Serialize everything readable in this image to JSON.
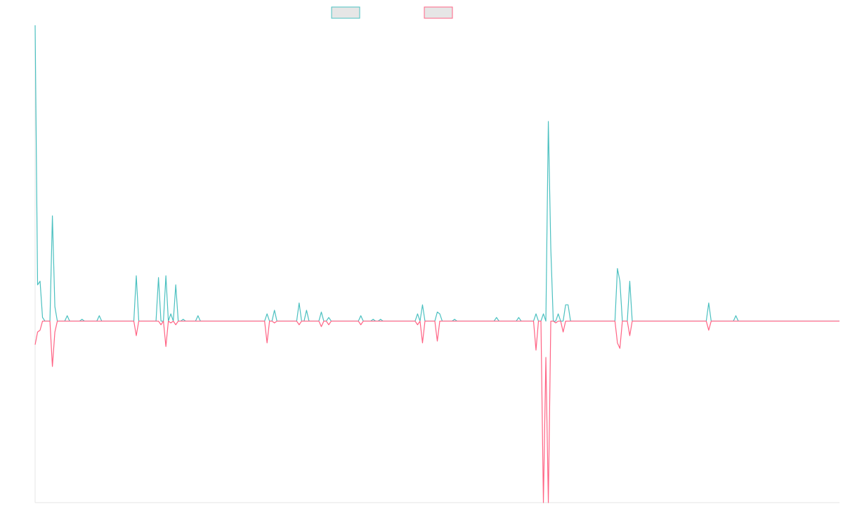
{
  "chart_data": {
    "type": "line",
    "title": "",
    "xlabel": "",
    "ylabel": "",
    "grid": false,
    "legend_position": "top-center",
    "ylim": [
      -100,
      163
    ],
    "series": [
      {
        "name": "",
        "color": "#4bc0c0",
        "fill": "#e6e6e6",
        "values": [
          163,
          20,
          22,
          2,
          0,
          0,
          0,
          58,
          8,
          0,
          0,
          0,
          0,
          3,
          0,
          0,
          0,
          0,
          0,
          1,
          0,
          0,
          0,
          0,
          0,
          0,
          3,
          0,
          0,
          0,
          0,
          0,
          0,
          0,
          0,
          0,
          0,
          0,
          0,
          0,
          0,
          25,
          0,
          0,
          0,
          0,
          0,
          0,
          0,
          0,
          24,
          0,
          0,
          25,
          0,
          4,
          0,
          20,
          0,
          0,
          1,
          0,
          0,
          0,
          0,
          0,
          3,
          0,
          0,
          0,
          0,
          0,
          0,
          0,
          0,
          0,
          0,
          0,
          0,
          0,
          0,
          0,
          0,
          0,
          0,
          0,
          0,
          0,
          0,
          0,
          0,
          0,
          0,
          0,
          4,
          0,
          0,
          6,
          0,
          0,
          0,
          0,
          0,
          0,
          0,
          0,
          0,
          10,
          0,
          0,
          6,
          0,
          0,
          0,
          0,
          0,
          5,
          0,
          0,
          2,
          0,
          0,
          0,
          0,
          0,
          0,
          0,
          0,
          0,
          0,
          0,
          0,
          3,
          0,
          0,
          0,
          0,
          1,
          0,
          0,
          1,
          0,
          0,
          0,
          0,
          0,
          0,
          0,
          0,
          0,
          0,
          0,
          0,
          0,
          0,
          4,
          0,
          9,
          0,
          0,
          0,
          0,
          0,
          5,
          4,
          0,
          0,
          0,
          0,
          0,
          1,
          0,
          0,
          0,
          0,
          0,
          0,
          0,
          0,
          0,
          0,
          0,
          0,
          0,
          0,
          0,
          0,
          2,
          0,
          0,
          0,
          0,
          0,
          0,
          0,
          0,
          2,
          0,
          0,
          0,
          0,
          0,
          0,
          4,
          0,
          0,
          4,
          0,
          110,
          40,
          0,
          0,
          4,
          0,
          0,
          9,
          9,
          0,
          0,
          0,
          0,
          0,
          0,
          0,
          0,
          0,
          0,
          0,
          0,
          0,
          0,
          0,
          0,
          0,
          0,
          0,
          29,
          22,
          0,
          0,
          0,
          22,
          0,
          0,
          0,
          0,
          0,
          0,
          0,
          0,
          0,
          0,
          0,
          0,
          0,
          0,
          0,
          0,
          0,
          0,
          0,
          0,
          0,
          0,
          0,
          0,
          0,
          0,
          0,
          0,
          0,
          0,
          0,
          10,
          0,
          0,
          0,
          0,
          0,
          0,
          0,
          0,
          0,
          0,
          3,
          0,
          0,
          0,
          0,
          0,
          0,
          0,
          0,
          0,
          0,
          0,
          0,
          0,
          0,
          0,
          0,
          0,
          0,
          0,
          0,
          0,
          0,
          0,
          0,
          0,
          0,
          0,
          0,
          0,
          0,
          0,
          0,
          0,
          0,
          0,
          0,
          0,
          0,
          0,
          0,
          0,
          0
        ]
      },
      {
        "name": "",
        "color": "#ff6384",
        "fill": "#e6e6e6",
        "values": [
          -13,
          -6,
          -5,
          0,
          0,
          0,
          0,
          -25,
          -6,
          0,
          0,
          0,
          0,
          0,
          0,
          0,
          0,
          0,
          0,
          0,
          0,
          0,
          0,
          0,
          0,
          0,
          0,
          0,
          0,
          0,
          0,
          0,
          0,
          0,
          0,
          0,
          0,
          0,
          0,
          0,
          0,
          -8,
          0,
          0,
          0,
          0,
          0,
          0,
          0,
          0,
          0,
          -2,
          0,
          -14,
          0,
          -1,
          0,
          -2,
          0,
          0,
          0,
          0,
          0,
          0,
          0,
          0,
          0,
          0,
          0,
          0,
          0,
          0,
          0,
          0,
          0,
          0,
          0,
          0,
          0,
          0,
          0,
          0,
          0,
          0,
          0,
          0,
          0,
          0,
          0,
          0,
          0,
          0,
          0,
          0,
          -12,
          0,
          0,
          -1,
          0,
          0,
          0,
          0,
          0,
          0,
          0,
          0,
          0,
          -2,
          0,
          0,
          0,
          0,
          0,
          0,
          0,
          0,
          -3,
          0,
          0,
          -2,
          0,
          0,
          0,
          0,
          0,
          0,
          0,
          0,
          0,
          0,
          0,
          0,
          -2,
          0,
          0,
          0,
          0,
          0,
          0,
          0,
          0,
          0,
          0,
          0,
          0,
          0,
          0,
          0,
          0,
          0,
          0,
          0,
          0,
          0,
          0,
          -2,
          0,
          -12,
          0,
          0,
          0,
          0,
          0,
          -11,
          0,
          0,
          0,
          0,
          0,
          0,
          0,
          0,
          0,
          0,
          0,
          0,
          0,
          0,
          0,
          0,
          0,
          0,
          0,
          0,
          0,
          0,
          0,
          0,
          0,
          0,
          0,
          0,
          0,
          0,
          0,
          0,
          0,
          0,
          0,
          0,
          0,
          0,
          0,
          -16,
          0,
          0,
          -100,
          -20,
          -100,
          0,
          0,
          -1,
          0,
          0,
          -6,
          0,
          0,
          0,
          0,
          0,
          0,
          0,
          0,
          0,
          0,
          0,
          0,
          0,
          0,
          0,
          0,
          0,
          0,
          0,
          0,
          0,
          -12,
          -15,
          0,
          0,
          0,
          -8,
          0,
          0,
          0,
          0,
          0,
          0,
          0,
          0,
          0,
          0,
          0,
          0,
          0,
          0,
          0,
          0,
          0,
          0,
          0,
          0,
          0,
          0,
          0,
          0,
          0,
          0,
          0,
          0,
          0,
          0,
          0,
          -5,
          0,
          0,
          0,
          0,
          0,
          0,
          0,
          0,
          0,
          0,
          0,
          0,
          0,
          0,
          0,
          0,
          0,
          0,
          0,
          0,
          0,
          0,
          0,
          0,
          0,
          0,
          0,
          0,
          0,
          0,
          0,
          0,
          0,
          0,
          0,
          0,
          0,
          0,
          0,
          0,
          0,
          0,
          0,
          0,
          0,
          0,
          0,
          0,
          0,
          0,
          0,
          0,
          0
        ]
      }
    ]
  }
}
